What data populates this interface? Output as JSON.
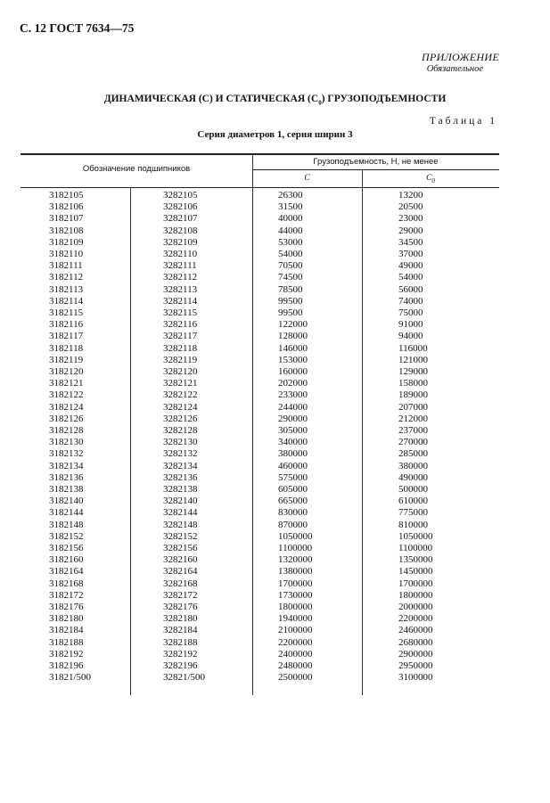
{
  "page_header": "С. 12 ГОСТ 7634—75",
  "appendix": "ПРИЛОЖЕНИЕ",
  "appendix_status": "Обязательное",
  "title_parts": {
    "a": "ДИНАМИЧЕСКАЯ (С) И СТАТИЧЕСКАЯ (С",
    "sub": "0",
    "b": ") ГРУЗОПОДЪЕМНОСТИ"
  },
  "table_label": "Таблица 1",
  "table_subtitle": "Серия диаметров 1, серия ширин 3",
  "table": {
    "header_designation": "Обозначение подшипников",
    "header_capacity": "Грузоподъемность, Н, не менее",
    "header_c": "C",
    "header_c0": "C",
    "header_c0_sub": "0",
    "rows": [
      [
        "3182105",
        "3282105",
        "26300",
        "13200"
      ],
      [
        "3182106",
        "3282106",
        "31500",
        "20500"
      ],
      [
        "3182107",
        "3282107",
        "40000",
        "23000"
      ],
      [
        "3182108",
        "3282108",
        "44000",
        "29000"
      ],
      [
        "3182109",
        "3282109",
        "53000",
        "34500"
      ],
      [
        "3182110",
        "3282110",
        "54000",
        "37000"
      ],
      [
        "3182111",
        "3282111",
        "70500",
        "49000"
      ],
      [
        "3182112",
        "3282112",
        "74500",
        "54000"
      ],
      [
        "3182113",
        "3282113",
        "78500",
        "56000"
      ],
      [
        "3182114",
        "3282114",
        "99500",
        "74000"
      ],
      [
        "3182115",
        "3282115",
        "99500",
        "75000"
      ],
      [
        "3182116",
        "3282116",
        "122000",
        "91000"
      ],
      [
        "3182117",
        "3282117",
        "128000",
        "94000"
      ],
      [
        "3182118",
        "3282118",
        "146000",
        "116000"
      ],
      [
        "3182119",
        "3282119",
        "153000",
        "121000"
      ],
      [
        "3182120",
        "3282120",
        "160000",
        "129000"
      ],
      [
        "3182121",
        "3282121",
        "202000",
        "158000"
      ],
      [
        "3182122",
        "3282122",
        "233000",
        "189000"
      ],
      [
        "3182124",
        "3282124",
        "244000",
        "207000"
      ],
      [
        "3182126",
        "3282126",
        "290000",
        "212000"
      ],
      [
        "3182128",
        "3282128",
        "305000",
        "237000"
      ],
      [
        "3182130",
        "3282130",
        "340000",
        "270000"
      ],
      [
        "3182132",
        "3282132",
        "380000",
        "285000"
      ],
      [
        "3182134",
        "3282134",
        "460000",
        "380000"
      ],
      [
        "3182136",
        "3282136",
        "575000",
        "490000"
      ],
      [
        "3182138",
        "3282138",
        "605000",
        "500000"
      ],
      [
        "3182140",
        "3282140",
        "665000",
        "610000"
      ],
      [
        "3182144",
        "3282144",
        "830000",
        "775000"
      ],
      [
        "3182148",
        "3282148",
        "870000",
        "810000"
      ],
      [
        "3182152",
        "3282152",
        "1050000",
        "1050000"
      ],
      [
        "3182156",
        "3282156",
        "1100000",
        "1100000"
      ],
      [
        "3182160",
        "3282160",
        "1320000",
        "1350000"
      ],
      [
        "3182164",
        "3282164",
        "1380000",
        "1450000"
      ],
      [
        "3182168",
        "3282168",
        "1700000",
        "1700000"
      ],
      [
        "3182172",
        "3282172",
        "1730000",
        "1800000"
      ],
      [
        "3182176",
        "3282176",
        "1800000",
        "2000000"
      ],
      [
        "3182180",
        "3282180",
        "1940000",
        "2200000"
      ],
      [
        "3182184",
        "3282184",
        "2100000",
        "2460000"
      ],
      [
        "3182188",
        "3282188",
        "2200000",
        "2680000"
      ],
      [
        "3182192",
        "3282192",
        "2400000",
        "2900000"
      ],
      [
        "3182196",
        "3282196",
        "2480000",
        "2950000"
      ],
      [
        "31821/500",
        "32821/500",
        "2500000",
        "3100000"
      ]
    ]
  }
}
